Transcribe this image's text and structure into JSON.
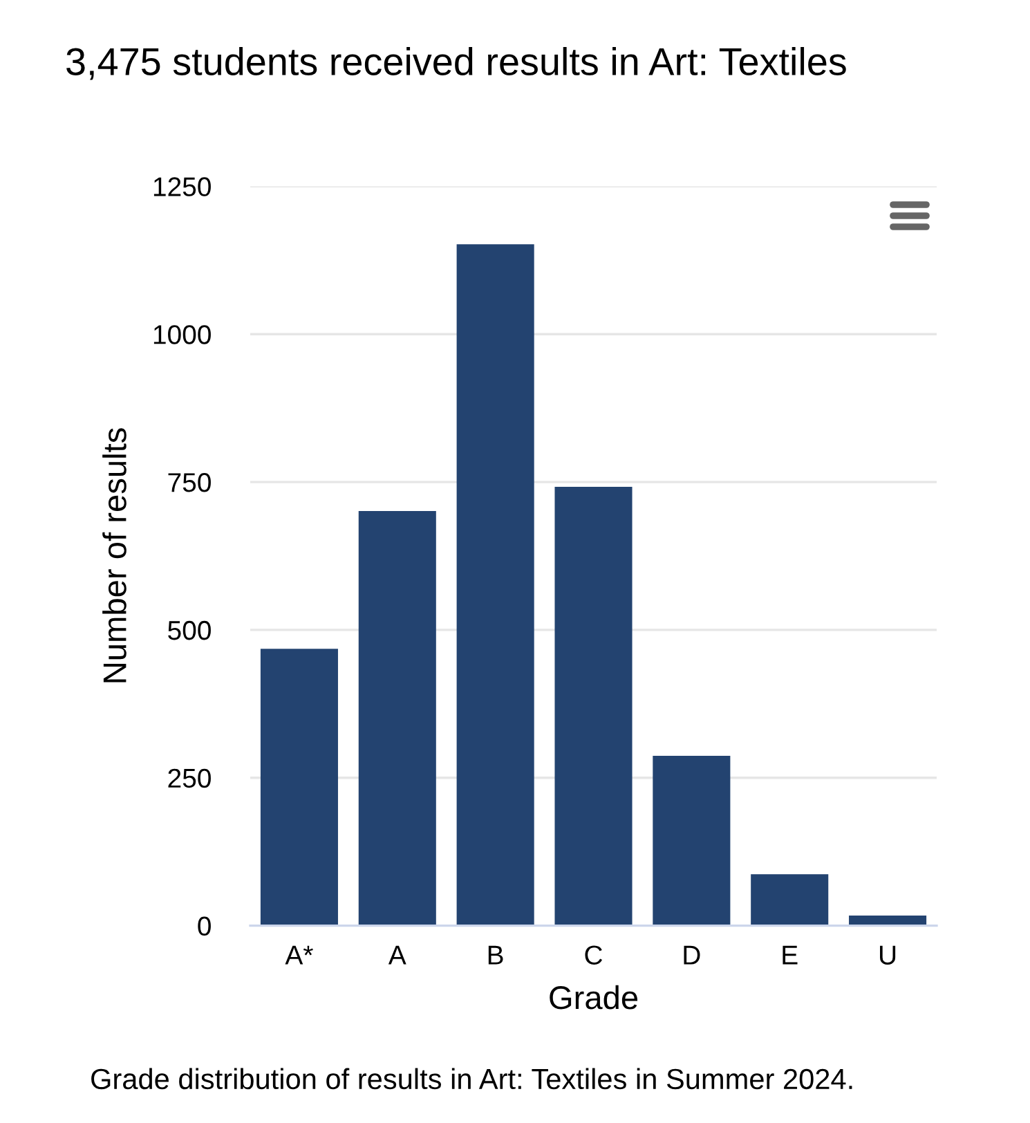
{
  "chart_data": {
    "type": "bar",
    "title": "3,475 students received results in Art: Textiles",
    "xlabel": "Grade",
    "ylabel": "Number of results",
    "categories": [
      "A*",
      "A",
      "B",
      "C",
      "D",
      "E",
      "U"
    ],
    "values": [
      468,
      701,
      1152,
      742,
      287,
      87,
      17
    ],
    "color": "#234370",
    "ylim": [
      0,
      1250
    ],
    "yticks": [
      0,
      250,
      500,
      750,
      1000,
      1250
    ],
    "grid": "y",
    "annotations": [
      "Grade distribution of results in Art: Textiles in Summer 2024."
    ]
  }
}
